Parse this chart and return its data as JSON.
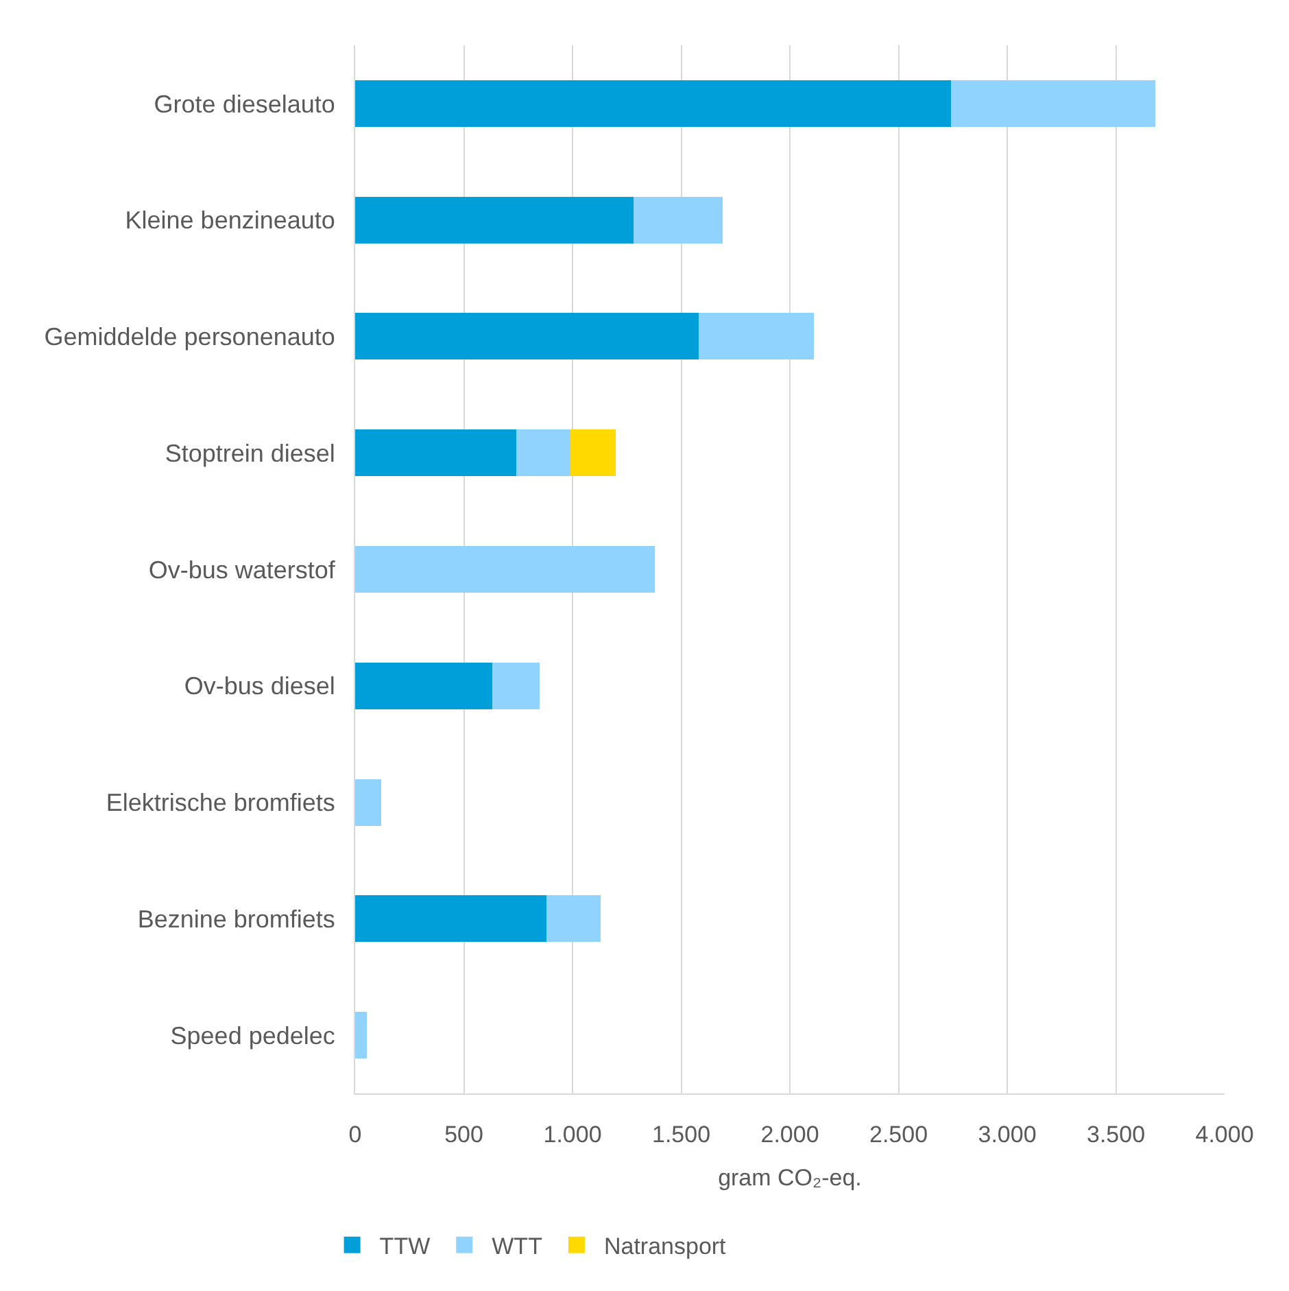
{
  "chart_data": {
    "type": "bar",
    "orientation": "horizontal",
    "stacked": true,
    "categories": [
      "Grote dieselauto",
      "Kleine benzineauto",
      "Gemiddelde personenauto",
      "Stoptrein diesel",
      "Ov-bus waterstof",
      "Ov-bus diesel",
      "Elektrische bromfiets",
      "Beznine bromfiets",
      "Speed pedelec"
    ],
    "series": [
      {
        "name": "TTW",
        "color": "#009fda",
        "values": [
          2740,
          1280,
          1580,
          740,
          null,
          630,
          null,
          880,
          null
        ]
      },
      {
        "name": "WTT",
        "color": "#8fd3fe",
        "values": [
          940,
          410,
          530,
          250,
          1380,
          220,
          120,
          250,
          55
        ]
      },
      {
        "name": "Natransport",
        "color": "#ffd900",
        "values": [
          null,
          null,
          null,
          210,
          null,
          null,
          null,
          null,
          null
        ]
      }
    ],
    "xlabel": "gram CO₂-eq.",
    "xlim": [
      0,
      4000
    ],
    "xticks": [
      0,
      500,
      {
        "value": 1000,
        "label": "1.000"
      },
      {
        "value": 1500,
        "label": "1.500"
      },
      {
        "value": 2000,
        "label": "2.000"
      },
      {
        "value": 2500,
        "label": "2.500"
      },
      {
        "value": 3000,
        "label": "3.000"
      },
      {
        "value": 3500,
        "label": "3.500"
      },
      {
        "value": 4000,
        "label": "4.000"
      }
    ],
    "grid": "x",
    "legend": "bottom left"
  }
}
